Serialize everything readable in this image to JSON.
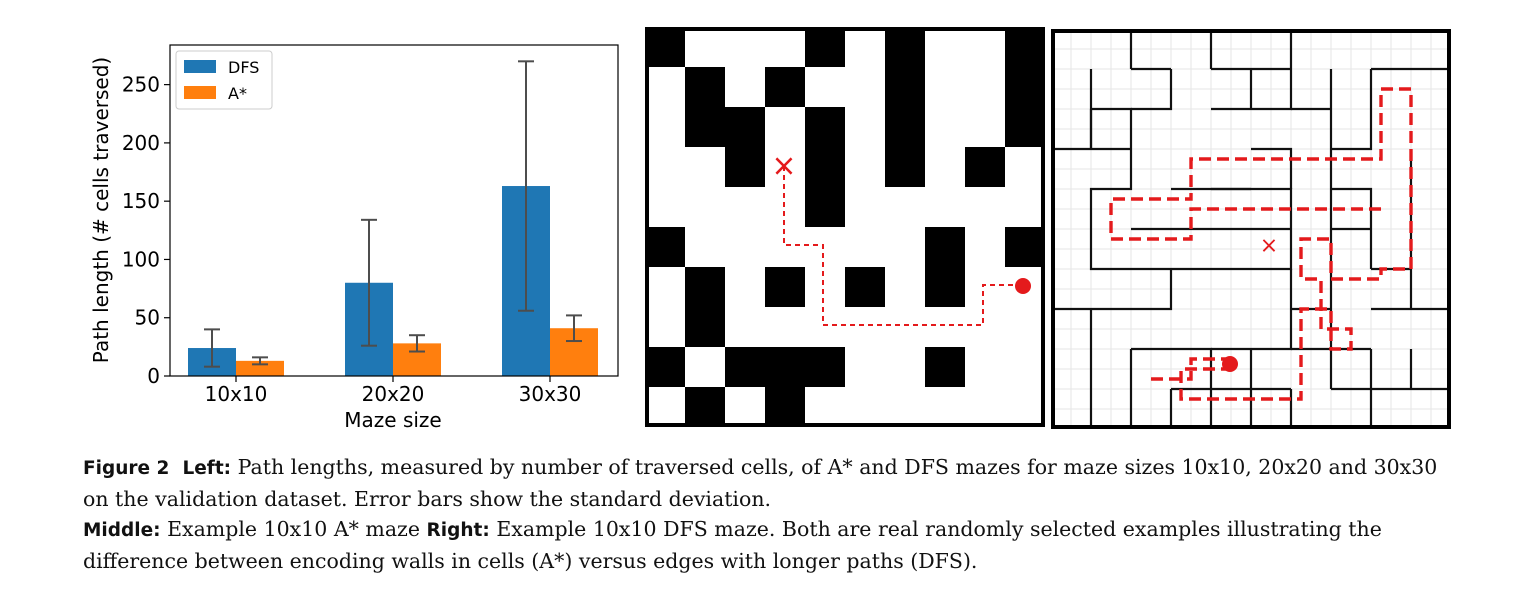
{
  "chart_data": {
    "type": "bar",
    "categories": [
      "10x10",
      "20x20",
      "30x30"
    ],
    "series": [
      {
        "name": "DFS",
        "color": "#1f77b4",
        "values": [
          24,
          80,
          163
        ],
        "err": [
          16,
          54,
          107
        ]
      },
      {
        "name": "A*",
        "color": "#ff7f0e",
        "values": [
          13,
          28,
          41
        ],
        "err": [
          3,
          7,
          11
        ]
      }
    ],
    "xlabel": "Maze size",
    "ylabel": "Path length (# cells traversed)",
    "ylim": [
      0,
      284
    ],
    "yticks": [
      "0",
      "50",
      "100",
      "150",
      "200",
      "250"
    ],
    "legend_position": "upper-left",
    "error_bar_color": "#4d4d4d"
  },
  "middle_maze": {
    "size": 10,
    "wall_color": "#000000",
    "path_color": "#e41a1c",
    "walls": [
      [
        0,
        0
      ],
      [
        0,
        4
      ],
      [
        0,
        6
      ],
      [
        0,
        9
      ],
      [
        1,
        1
      ],
      [
        1,
        3
      ],
      [
        1,
        6
      ],
      [
        1,
        9
      ],
      [
        2,
        1
      ],
      [
        2,
        2
      ],
      [
        2,
        4
      ],
      [
        2,
        6
      ],
      [
        2,
        9
      ],
      [
        3,
        2
      ],
      [
        3,
        4
      ],
      [
        3,
        6
      ],
      [
        3,
        8
      ],
      [
        4,
        4
      ],
      [
        5,
        0
      ],
      [
        5,
        7
      ],
      [
        5,
        9
      ],
      [
        6,
        1
      ],
      [
        6,
        3
      ],
      [
        6,
        5
      ],
      [
        6,
        7
      ],
      [
        7,
        1
      ],
      [
        8,
        0
      ],
      [
        8,
        2
      ],
      [
        8,
        3
      ],
      [
        8,
        4
      ],
      [
        8,
        7
      ],
      [
        9,
        1
      ],
      [
        9,
        3
      ]
    ],
    "start_symbol": "×",
    "goal_symbol": "●"
  },
  "right_maze": {
    "size": 10,
    "wall_color": "#000000",
    "grid_color": "#e6e6e6",
    "path_color": "#e41a1c",
    "start_symbol": "×",
    "goal_symbol": "●"
  },
  "caption": {
    "fig_label": "Figure 2",
    "left_label": "Left:",
    "left_text": "Path lengths, measured by number of traversed cells, of A* and DFS mazes for maze sizes 10x10, 20x20 and 30x30 on the validation dataset. Error bars show the standard deviation.",
    "middle_label": "Middle:",
    "middle_text": "Example 10x10 A* maze",
    "right_label": "Right:",
    "right_text": "Example 10x10 DFS maze.  Both are real randomly selected examples illustrating the difference between encoding walls in cells (A*) versus edges with longer paths (DFS)."
  }
}
